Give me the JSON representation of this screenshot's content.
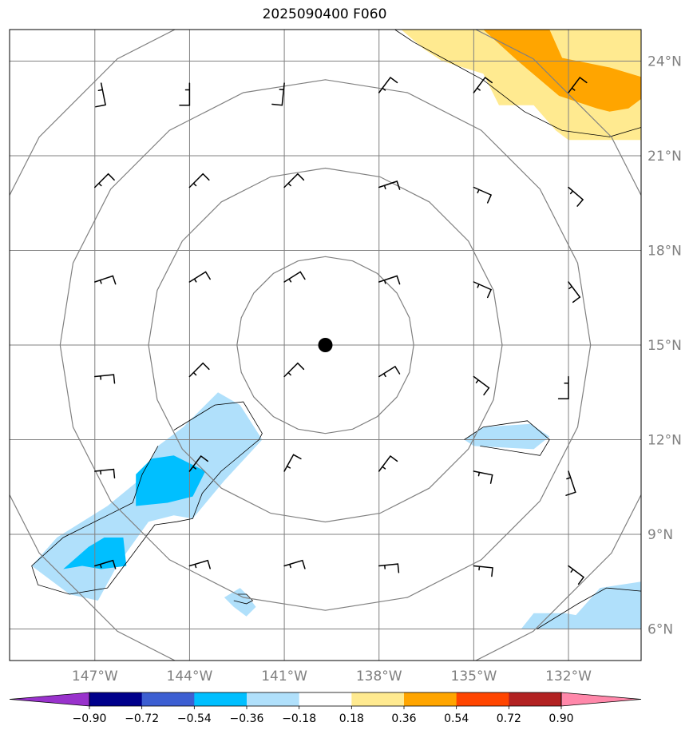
{
  "title": "2025090400 F060",
  "map": {
    "lon_range": [
      -149.7,
      -129.7
    ],
    "lat_range": [
      5.0,
      25.0
    ],
    "lon_ticks": [
      {
        "value": -147,
        "label": "147°W"
      },
      {
        "value": -144,
        "label": "144°W"
      },
      {
        "value": -141,
        "label": "141°W"
      },
      {
        "value": -138,
        "label": "138°W"
      },
      {
        "value": -135,
        "label": "135°W"
      },
      {
        "value": -132,
        "label": "132°W"
      }
    ],
    "lat_ticks": [
      {
        "value": 6,
        "label": "6°N"
      },
      {
        "value": 9,
        "label": "9°N"
      },
      {
        "value": 12,
        "label": "12°N"
      },
      {
        "value": 15,
        "label": "15°N"
      },
      {
        "value": 18,
        "label": "18°N"
      },
      {
        "value": 21,
        "label": "21°N"
      },
      {
        "value": 24,
        "label": "24°N"
      }
    ],
    "grid": true,
    "center": {
      "lon": -139.7,
      "lat": 15.0
    },
    "range_rings_deg": [
      2.8,
      5.6,
      8.4,
      11.2
    ],
    "colors": {
      "grid": "#808080",
      "ring": "#808080",
      "contour": "#000000",
      "barb": "#000000"
    }
  },
  "contours": [
    {
      "level": -0.18,
      "color": "#b0e0fb",
      "polygons": [
        [
          [
            -144.2,
            12.4
          ],
          [
            -143.1,
            13.5
          ],
          [
            -142.4,
            13.1
          ],
          [
            -141.7,
            12.0
          ],
          [
            -142.9,
            10.7
          ],
          [
            -143.9,
            9.5
          ],
          [
            -144.5,
            9.6
          ],
          [
            -145.3,
            9.4
          ],
          [
            -146.3,
            8.0
          ],
          [
            -146.9,
            6.9
          ],
          [
            -147.8,
            7.1
          ],
          [
            -149.0,
            8.0
          ],
          [
            -148.2,
            8.9
          ],
          [
            -146.6,
            9.9
          ],
          [
            -145.5,
            10.8
          ],
          [
            -145.0,
            11.8
          ]
        ],
        [
          [
            -142.4,
            7.3
          ],
          [
            -142.2,
            7.1
          ],
          [
            -141.9,
            6.7
          ],
          [
            -142.2,
            6.4
          ],
          [
            -142.6,
            6.7
          ],
          [
            -142.9,
            7.0
          ]
        ],
        [
          [
            -135.3,
            12.0
          ],
          [
            -134.7,
            12.4
          ],
          [
            -133.2,
            12.5
          ],
          [
            -132.6,
            12.1
          ],
          [
            -133.1,
            11.7
          ],
          [
            -135.0,
            11.8
          ]
        ],
        [
          [
            -131.0,
            6.3
          ],
          [
            -131.4,
            6.0
          ],
          [
            -131.8,
            6.4
          ],
          [
            -131.0,
            7.3
          ],
          [
            -129.7,
            7.5
          ],
          [
            -129.7,
            6.0
          ],
          [
            -133.5,
            6.0
          ],
          [
            -133.1,
            6.5
          ],
          [
            -132.1,
            6.5
          ]
        ]
      ]
    },
    {
      "level": -0.36,
      "color": "#00bfff",
      "polygons": [
        [
          [
            -144.5,
            11.5
          ],
          [
            -143.5,
            11.0
          ],
          [
            -143.9,
            10.2
          ],
          [
            -144.7,
            10.0
          ],
          [
            -145.7,
            9.9
          ],
          [
            -145.7,
            10.9
          ],
          [
            -145.2,
            11.4
          ]
        ],
        [
          [
            -147.2,
            8.6
          ],
          [
            -146.7,
            8.9
          ],
          [
            -146.1,
            8.9
          ],
          [
            -146.0,
            8.0
          ],
          [
            -146.8,
            7.9
          ],
          [
            -147.4,
            8.0
          ],
          [
            -148.0,
            7.9
          ]
        ]
      ]
    },
    {
      "level": 0.18,
      "color": "#ffea90",
      "polygons": [
        [
          [
            -137.3,
            25.0
          ],
          [
            -129.7,
            25.0
          ],
          [
            -129.7,
            21.5
          ],
          [
            -130.0,
            21.5
          ],
          [
            -132.0,
            21.5
          ],
          [
            -132.4,
            21.8
          ],
          [
            -133.1,
            22.6
          ],
          [
            -134.2,
            22.6
          ],
          [
            -134.7,
            23.6
          ],
          [
            -136.0,
            24.0
          ],
          [
            -136.6,
            24.4
          ]
        ]
      ]
    },
    {
      "level": 0.36,
      "color": "#ffa500",
      "polygons": [
        [
          [
            -134.7,
            25.0
          ],
          [
            -132.6,
            25.0
          ],
          [
            -132.2,
            24.1
          ],
          [
            -130.7,
            23.8
          ],
          [
            -129.7,
            23.5
          ],
          [
            -129.7,
            22.8
          ],
          [
            -130.1,
            22.5
          ],
          [
            -130.7,
            22.4
          ],
          [
            -131.1,
            22.5
          ],
          [
            -132.3,
            22.9
          ],
          [
            -133.6,
            24.0
          ]
        ]
      ]
    }
  ],
  "thin_contours": [
    [
      [
        -144.5,
        12.3
      ],
      [
        -143.2,
        13.1
      ],
      [
        -142.3,
        13.2
      ],
      [
        -141.7,
        12.2
      ],
      [
        -141.8,
        12.0
      ],
      [
        -143.0,
        11.0
      ],
      [
        -143.6,
        10.3
      ],
      [
        -143.9,
        9.5
      ],
      [
        -144.4,
        9.4
      ],
      [
        -145.1,
        9.3
      ],
      [
        -146.0,
        8.1
      ],
      [
        -146.6,
        7.3
      ],
      [
        -147.8,
        7.1
      ],
      [
        -148.8,
        7.4
      ],
      [
        -149.0,
        8.0
      ],
      [
        -148.0,
        8.9
      ],
      [
        -146.6,
        9.6
      ],
      [
        -145.8,
        10.0
      ],
      [
        -145.5,
        10.9
      ],
      [
        -145.0,
        11.8
      ]
    ],
    [
      [
        -142.5,
        7.1
      ],
      [
        -142.2,
        7.1
      ],
      [
        -142.0,
        6.9
      ],
      [
        -142.2,
        6.8
      ],
      [
        -142.6,
        6.9
      ]
    ],
    [
      [
        -135.3,
        12.0
      ],
      [
        -134.7,
        12.4
      ],
      [
        -133.3,
        12.6
      ],
      [
        -132.6,
        12.0
      ],
      [
        -132.9,
        11.5
      ],
      [
        -134.8,
        11.8
      ]
    ],
    [
      [
        -133.0,
        6.0
      ],
      [
        -131.7,
        6.8
      ],
      [
        -130.8,
        7.3
      ],
      [
        -129.7,
        7.2
      ]
    ],
    [
      [
        -137.5,
        25.0
      ],
      [
        -136.9,
        24.6
      ],
      [
        -135.8,
        24.0
      ],
      [
        -134.7,
        23.4
      ],
      [
        -133.4,
        22.4
      ],
      [
        -132.2,
        21.8
      ],
      [
        -130.7,
        21.6
      ],
      [
        -129.7,
        21.9
      ]
    ]
  ],
  "wind_barbs": [
    [
      -146.8,
      23.3,
      0.2,
      -1,
      0.7
    ],
    [
      -144.0,
      23.3,
      0,
      -1,
      0.7
    ],
    [
      -141.0,
      23.3,
      -0.1,
      -1,
      0.7
    ],
    [
      -138.0,
      23.0,
      0.6,
      0.8,
      0.6
    ],
    [
      -135.0,
      23.0,
      0.6,
      0.8,
      0.6
    ],
    [
      -132.0,
      23.0,
      0.6,
      0.8,
      0.6
    ],
    [
      -147.0,
      20.0,
      0.7,
      0.7,
      0.6
    ],
    [
      -144.0,
      20.0,
      0.7,
      0.7,
      0.6
    ],
    [
      -141.0,
      20.0,
      0.7,
      0.7,
      0.6
    ],
    [
      -138.0,
      20.0,
      0.9,
      0.3,
      0.6
    ],
    [
      -135.0,
      20.0,
      0.9,
      -0.4,
      0.6
    ],
    [
      -132.0,
      20.0,
      0.7,
      -0.6,
      0.6
    ],
    [
      -147.0,
      17.0,
      0.9,
      0.3,
      0.6
    ],
    [
      -144.0,
      17.0,
      0.8,
      0.5,
      0.6
    ],
    [
      -141.0,
      17.0,
      0.8,
      0.5,
      0.6
    ],
    [
      -138.0,
      17.0,
      0.9,
      0.3,
      0.6
    ],
    [
      -135.0,
      17.0,
      0.9,
      -0.4,
      0.6
    ],
    [
      -132.0,
      17.0,
      0.6,
      -0.8,
      0.6
    ],
    [
      -147.0,
      14.0,
      1,
      0.1,
      0.6
    ],
    [
      -144.0,
      14.0,
      0.7,
      0.7,
      0.6
    ],
    [
      -141.0,
      14.0,
      0.7,
      0.7,
      0.6
    ],
    [
      -138.0,
      14.0,
      0.8,
      0.5,
      0.6
    ],
    [
      -135.0,
      14.0,
      0.8,
      -0.6,
      0.6
    ],
    [
      -132.0,
      14.0,
      0,
      -1,
      0.7
    ],
    [
      -147.0,
      11.0,
      1,
      0.1,
      0.6
    ],
    [
      -144.0,
      11.0,
      0.6,
      0.8,
      0.6
    ],
    [
      -141.0,
      11.0,
      0.5,
      0.9,
      0.6
    ],
    [
      -138.0,
      11.0,
      0.6,
      0.8,
      0.6
    ],
    [
      -135.0,
      11.0,
      1,
      -0.2,
      0.6
    ],
    [
      -132.0,
      11.0,
      0.3,
      -0.9,
      0.7
    ],
    [
      -147.0,
      8.0,
      1,
      0.3,
      0.6
    ],
    [
      -144.0,
      8.0,
      1,
      0.3,
      0.6
    ],
    [
      -141.0,
      8.0,
      1,
      0.3,
      0.6
    ],
    [
      -138.0,
      8.0,
      1,
      0.1,
      0.6
    ],
    [
      -135.0,
      8.0,
      1,
      -0.1,
      0.6
    ],
    [
      -132.0,
      8.0,
      0.8,
      -0.6,
      0.6
    ]
  ],
  "colorbar": {
    "colors": [
      "#9932cc",
      "#00008b",
      "#3d5fd2",
      "#00bfff",
      "#b0e0fb",
      "#ffffff",
      "#ffea90",
      "#ffa500",
      "#ff4500",
      "#b22222",
      "#ff88aa"
    ],
    "labels": [
      "−0.90",
      "−0.72",
      "−0.54",
      "−0.36",
      "−0.18",
      "0.18",
      "0.36",
      "0.54",
      "0.72",
      "0.90"
    ]
  }
}
